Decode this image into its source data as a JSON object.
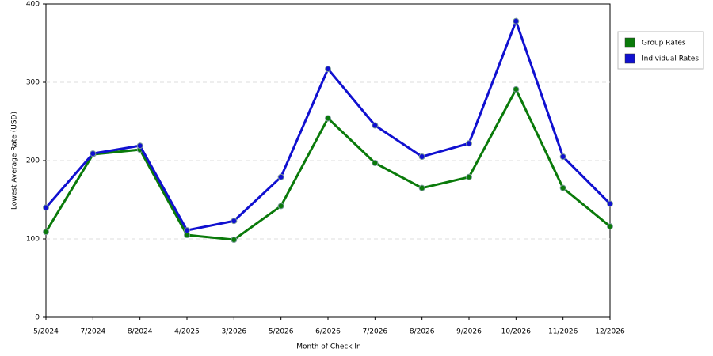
{
  "chart_data": {
    "type": "line",
    "x_label": "Month of Check In",
    "y_label": "Lowest Average Rate (USD)",
    "categories": [
      "5/2024",
      "7/2024",
      "8/2024",
      "4/2025",
      "3/2026",
      "5/2026",
      "6/2026",
      "7/2026",
      "8/2026",
      "9/2026",
      "10/2026",
      "11/2026",
      "12/2026"
    ],
    "series": [
      {
        "name": "Group Rates",
        "color": "#0a7a0a",
        "values": [
          109,
          208,
          214,
          105,
          99,
          142,
          254,
          197,
          165,
          179,
          291,
          165,
          116
        ]
      },
      {
        "name": "Individual Rates",
        "color": "#1010d0",
        "values": [
          140,
          209,
          219,
          111,
          123,
          179,
          317,
          245,
          205,
          222,
          378,
          205,
          145
        ]
      }
    ],
    "ylim": [
      0,
      400
    ],
    "yticks": [
      0,
      100,
      200,
      300,
      400
    ],
    "grid": true,
    "legend": "right"
  }
}
